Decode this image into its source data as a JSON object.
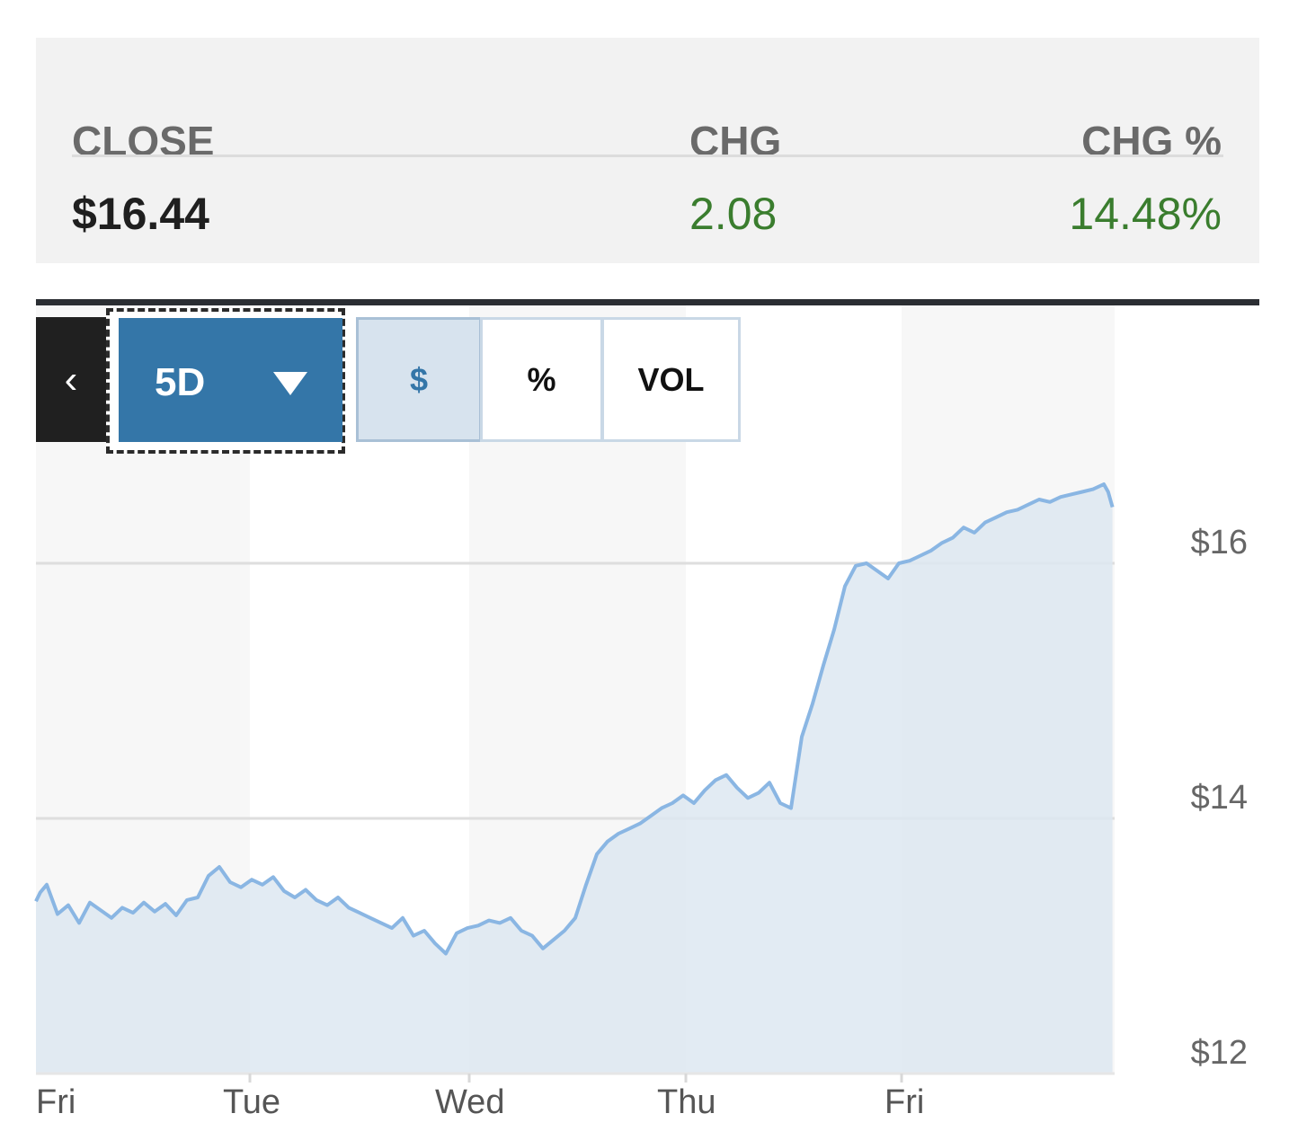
{
  "summary": {
    "close_label": "CLOSE",
    "chg_label": "CHG",
    "chgp_label": "CHG %",
    "close_value": "$16.44",
    "chg_value": "2.08",
    "chgp_value": "14.48%"
  },
  "controls": {
    "back_icon": "chevron-left-icon",
    "range_label": "5D",
    "dropdown_icon": "triangle-down-icon",
    "seg_dollar": "$",
    "seg_pct": "%",
    "seg_vol": "VOL"
  },
  "colors": {
    "line": "#8ab6e3",
    "area": "#dde8f1",
    "positive": "#3a7d2e",
    "accent": "#3476a8"
  },
  "chart_data": {
    "type": "area",
    "x_labels": [
      "Fri",
      "Tue",
      "Wed",
      "Thu",
      "Fri"
    ],
    "y_ticks": [
      "$12",
      "$14",
      "$16"
    ],
    "ylim": [
      12,
      16.6
    ],
    "grid": true,
    "x": [
      0,
      0.02,
      0.05,
      0.1,
      0.15,
      0.2,
      0.25,
      0.3,
      0.35,
      0.4,
      0.45,
      0.5,
      0.55,
      0.6,
      0.65,
      0.7,
      0.75,
      0.8,
      0.85,
      0.9,
      0.95,
      1.0,
      1.05,
      1.1,
      1.15,
      1.2,
      1.25,
      1.3,
      1.35,
      1.4,
      1.45,
      1.5,
      1.55,
      1.6,
      1.65,
      1.7,
      1.75,
      1.8,
      1.85,
      1.9,
      1.95,
      2.0,
      2.05,
      2.1,
      2.15,
      2.2,
      2.25,
      2.3,
      2.35,
      2.4,
      2.45,
      2.5,
      2.55,
      2.6,
      2.65,
      2.7,
      2.75,
      2.8,
      2.85,
      2.9,
      2.95,
      3.0,
      3.05,
      3.1,
      3.15,
      3.2,
      3.25,
      3.3,
      3.35,
      3.4,
      3.45,
      3.5,
      3.55,
      3.6,
      3.65,
      3.7,
      3.75,
      3.8,
      3.85,
      3.9,
      3.95,
      4.0,
      4.05,
      4.1,
      4.15,
      4.2,
      4.25,
      4.3,
      4.35,
      4.4,
      4.45,
      4.5,
      4.55,
      4.6,
      4.65,
      4.7,
      4.75,
      4.8,
      4.85,
      4.9,
      4.95,
      4.97,
      4.99
    ],
    "series": [
      {
        "values": [
          13.35,
          13.42,
          13.48,
          13.25,
          13.32,
          13.18,
          13.34,
          13.28,
          13.22,
          13.3,
          13.26,
          13.34,
          13.27,
          13.33,
          13.24,
          13.36,
          13.38,
          13.55,
          13.62,
          13.5,
          13.46,
          13.52,
          13.48,
          13.54,
          13.43,
          13.38,
          13.44,
          13.36,
          13.32,
          13.38,
          13.3,
          13.26,
          13.22,
          13.18,
          13.14,
          13.22,
          13.08,
          13.12,
          13.02,
          12.94,
          13.1,
          13.14,
          13.16,
          13.2,
          13.18,
          13.22,
          13.12,
          13.08,
          12.98,
          13.05,
          13.12,
          13.22,
          13.48,
          13.72,
          13.82,
          13.88,
          13.92,
          13.96,
          14.02,
          14.08,
          14.12,
          14.18,
          14.12,
          14.22,
          14.3,
          14.34,
          14.24,
          14.16,
          14.2,
          14.28,
          14.12,
          14.08,
          14.64,
          14.9,
          15.2,
          15.48,
          15.82,
          15.98,
          16.0,
          15.94,
          15.88,
          16.0,
          16.02,
          16.06,
          16.1,
          16.16,
          16.2,
          16.28,
          16.24,
          16.32,
          16.36,
          16.4,
          16.42,
          16.46,
          16.5,
          16.48,
          16.52,
          16.54,
          16.56,
          16.58,
          16.62,
          16.56,
          16.44
        ]
      }
    ]
  }
}
